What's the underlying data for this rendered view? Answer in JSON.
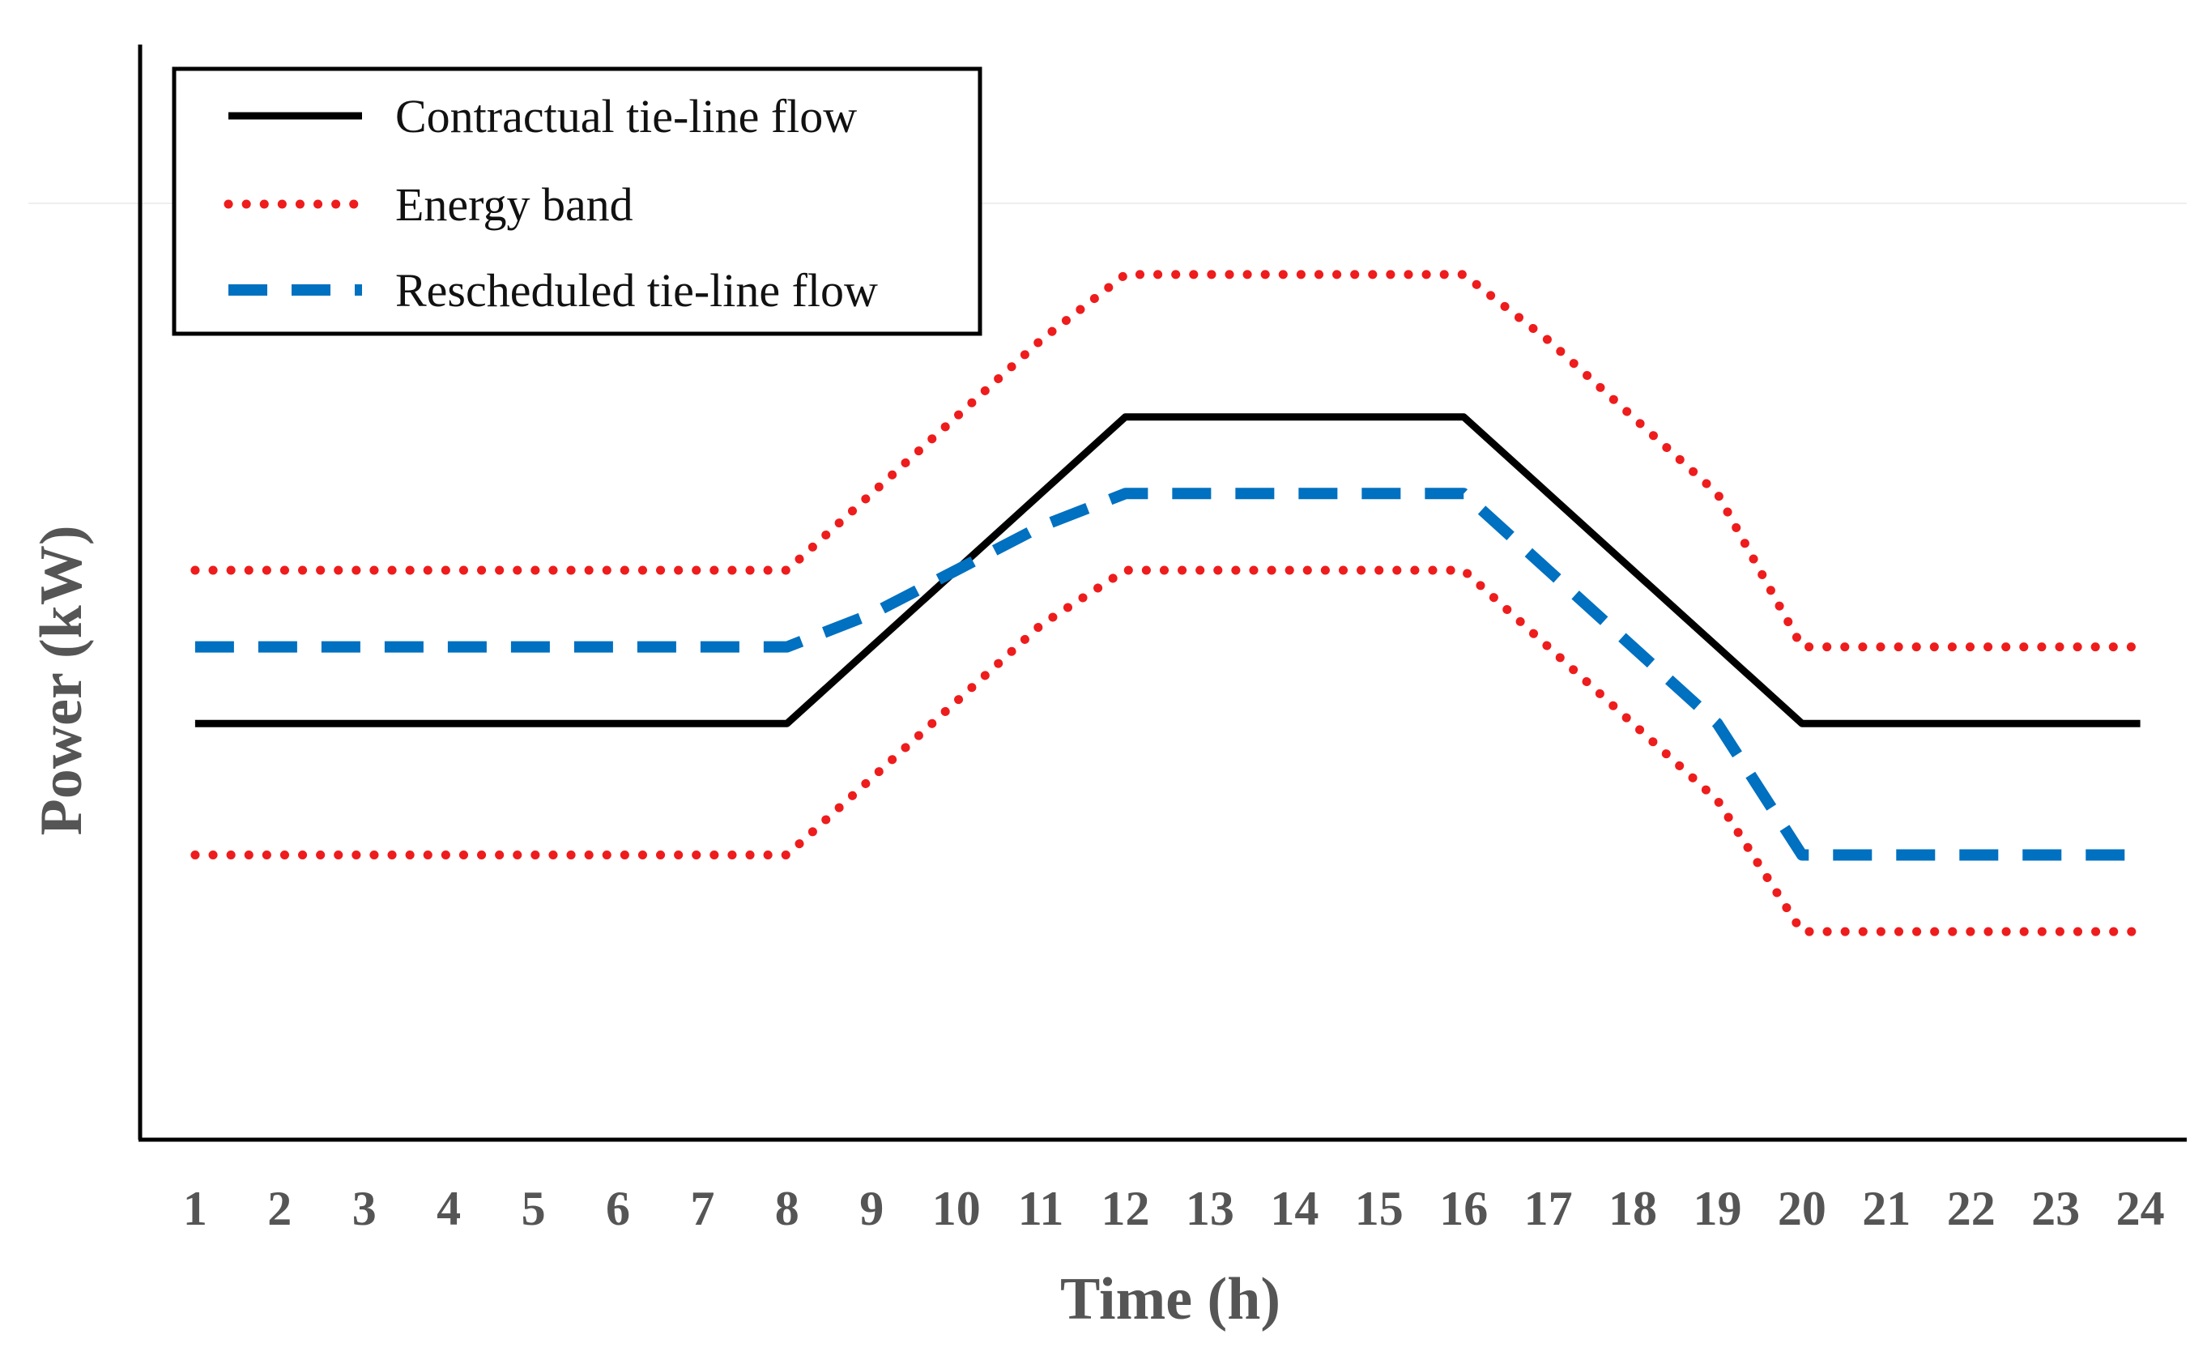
{
  "chart_data": {
    "type": "line",
    "title": "",
    "xlabel": "Time (h)",
    "ylabel": "Power (kW)",
    "x": [
      1,
      2,
      3,
      4,
      5,
      6,
      7,
      8,
      9,
      10,
      11,
      12,
      13,
      14,
      15,
      16,
      17,
      18,
      19,
      20,
      21,
      22,
      23,
      24
    ],
    "x_tick_labels": [
      "1",
      "2",
      "3",
      "4",
      "5",
      "6",
      "7",
      "8",
      "9",
      "10",
      "11",
      "12",
      "13",
      "14",
      "15",
      "16",
      "17",
      "18",
      "19",
      "20",
      "21",
      "22",
      "23",
      "24"
    ],
    "xlim": [
      0.35,
      24.55
    ],
    "ylim": [
      0,
      100
    ],
    "y_ticks_visible": false,
    "grid": false,
    "legend_position": "top-left",
    "series": [
      {
        "name": "Contractual  tie-line  flow",
        "style": "solid",
        "color": "#000000",
        "values": [
          38,
          38,
          38,
          38,
          38,
          38,
          38,
          38,
          45,
          52,
          59,
          66,
          66,
          66,
          66,
          66,
          59,
          52,
          45,
          38,
          38,
          38,
          38,
          38
        ]
      },
      {
        "name": "Energy  band",
        "style": "dotted",
        "color": "#ee1c1c",
        "values": [
          52,
          52,
          52,
          52,
          52,
          52,
          52,
          52,
          59,
          66,
          73,
          79,
          79,
          79,
          79,
          79,
          73,
          66,
          59,
          45,
          45,
          45,
          45,
          45
        ]
      },
      {
        "name": "Energy  band",
        "style": "dotted",
        "color": "#ee1c1c",
        "values": [
          26,
          26,
          26,
          26,
          26,
          26,
          26,
          26,
          33,
          40,
          47,
          52,
          52,
          52,
          52,
          52,
          45,
          38,
          31,
          19,
          19,
          19,
          19,
          19
        ]
      },
      {
        "name": "Rescheduled  tie-line  flow",
        "style": "dashed",
        "color": "#0070c0",
        "values": [
          45,
          45,
          45,
          45,
          45,
          45,
          45,
          45,
          48,
          52,
          56,
          59,
          59,
          59,
          59,
          59,
          52,
          45,
          38,
          26,
          26,
          26,
          26,
          26
        ]
      }
    ],
    "legend_entries": [
      {
        "label": "Contractual  tie-line  flow",
        "style": "solid",
        "color": "#000000"
      },
      {
        "label": "Energy  band",
        "style": "dotted",
        "color": "#ee1c1c"
      },
      {
        "label": "Rescheduled  tie-line  flow",
        "style": "dashed",
        "color": "#0070c0"
      }
    ]
  }
}
